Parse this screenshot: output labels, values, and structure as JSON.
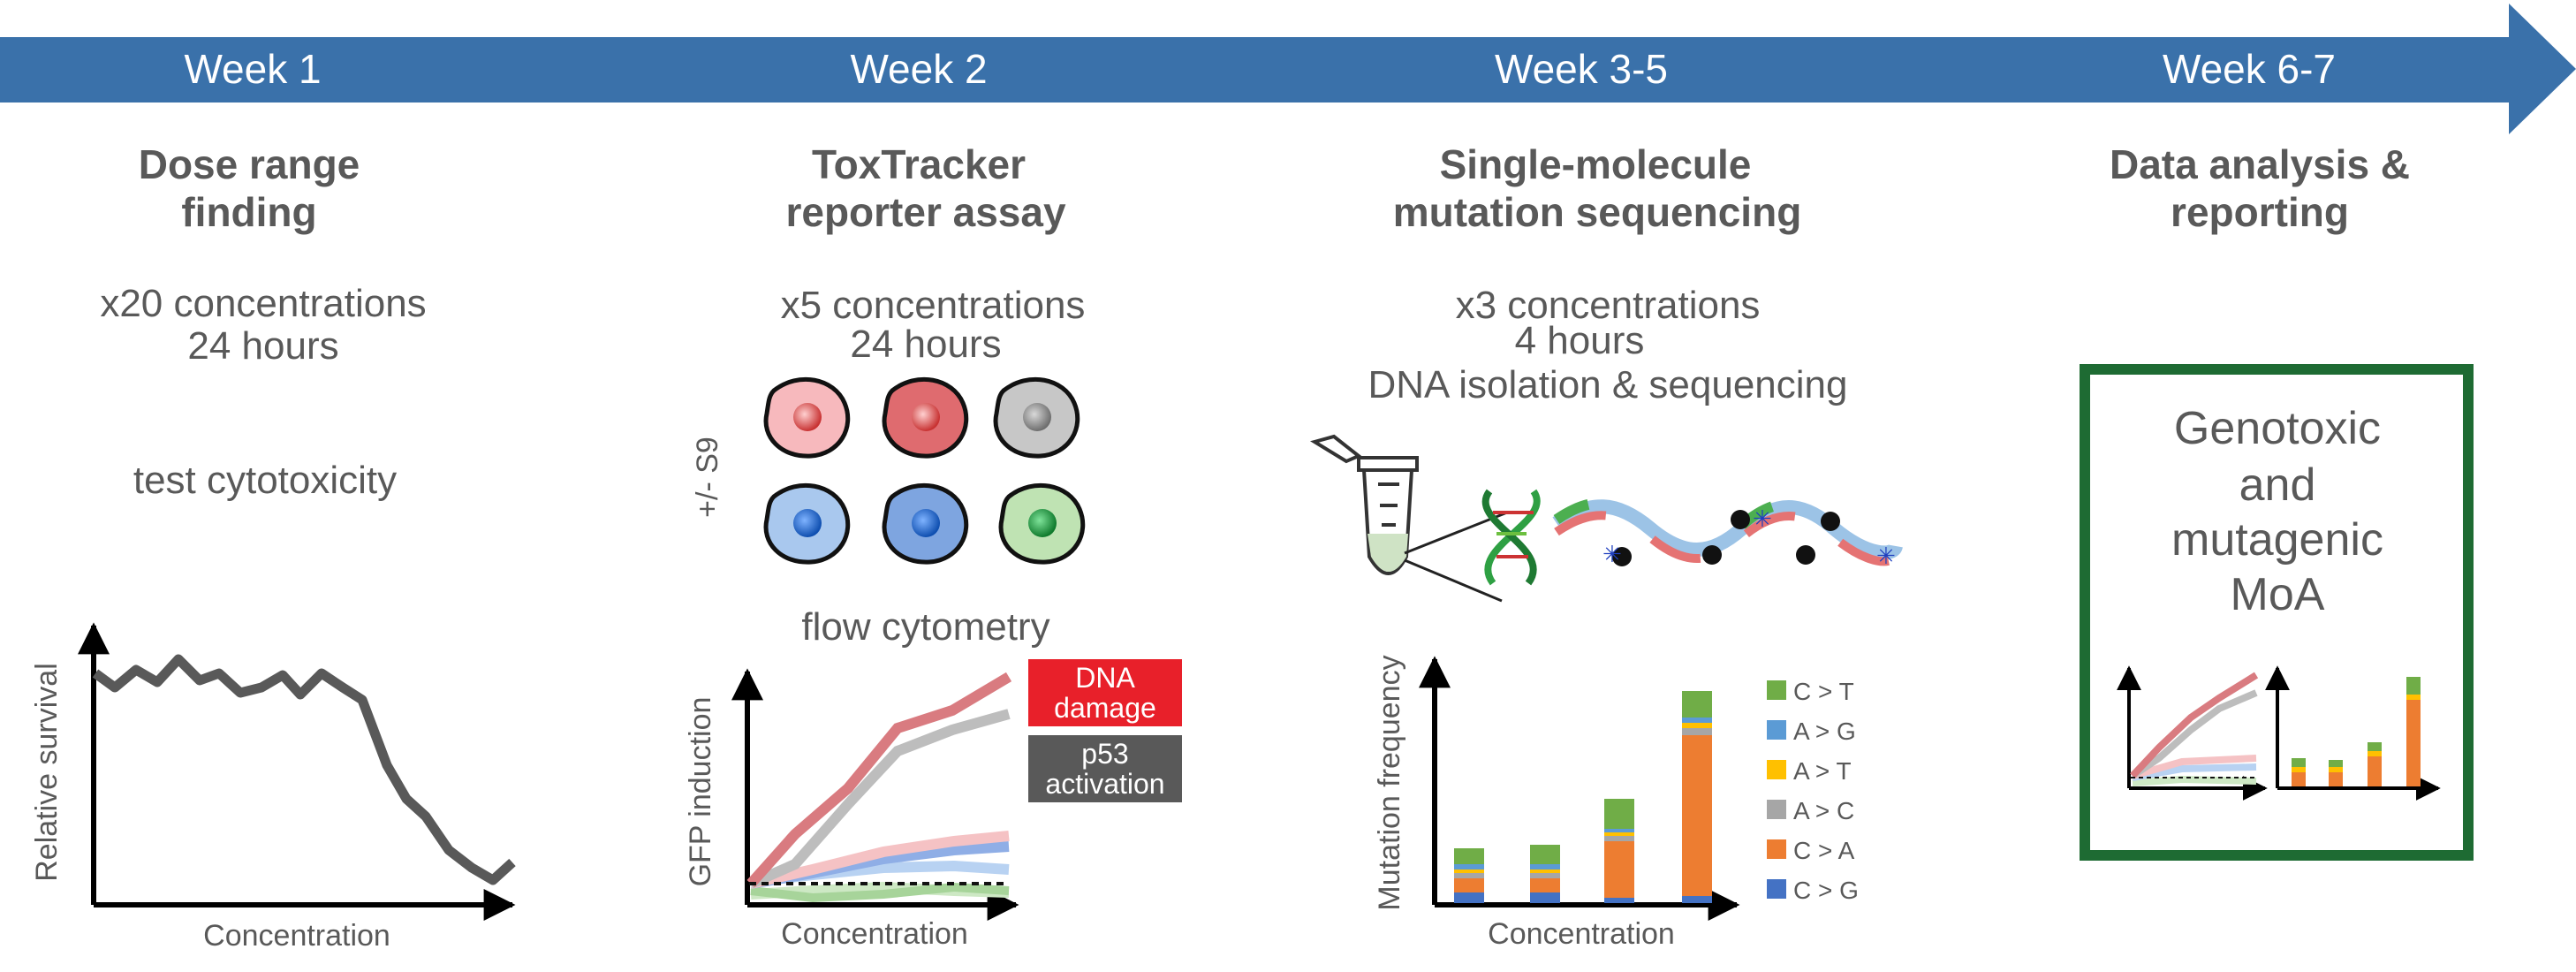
{
  "timeline": {
    "weeks": [
      "Week 1",
      "Week 2",
      "Week 3-5",
      "Week 6-7"
    ],
    "arrow_color": "#3a71aa"
  },
  "stages": [
    {
      "title": [
        "Dose range",
        "finding"
      ],
      "details": [
        "x20 concentrations",
        "24 hours"
      ],
      "note": "test cytotoxicity",
      "chart": {
        "xlabel": "Concentration",
        "ylabel": "Relative survival"
      }
    },
    {
      "title": [
        "ToxTracker",
        "reporter assay"
      ],
      "details": [
        "x5 concentrations",
        "24 hours"
      ],
      "side_label": "+/- S9",
      "method": "flow cytometry",
      "chart": {
        "xlabel": "Concentration",
        "ylabel": "GFP induction"
      },
      "legend": [
        {
          "lines": [
            "DNA",
            "damage"
          ],
          "color": "#e8202a"
        },
        {
          "lines": [
            "p53",
            "activation"
          ],
          "color": "#595959"
        }
      ]
    },
    {
      "title": [
        "Single-molecule",
        "mutation sequencing"
      ],
      "details": [
        "x3 concentrations",
        "4 hours",
        "DNA isolation & sequencing"
      ],
      "chart": {
        "xlabel": "Concentration",
        "ylabel": "Mutation frequency"
      },
      "legend": [
        {
          "label": "C > T",
          "color": "#70ad47"
        },
        {
          "label": "A > G",
          "color": "#5b9bd5"
        },
        {
          "label": "A > T",
          "color": "#ffc000"
        },
        {
          "label": "A > C",
          "color": "#a6a6a6"
        },
        {
          "label": "C > A",
          "color": "#ed7d31"
        },
        {
          "label": "C > G",
          "color": "#4472c4"
        }
      ]
    },
    {
      "title": [
        "Data analysis &",
        "reporting"
      ],
      "box": [
        "Genotoxic",
        "and",
        "mutagenic",
        "MoA"
      ],
      "box_color": "#1e6b33"
    }
  ]
}
